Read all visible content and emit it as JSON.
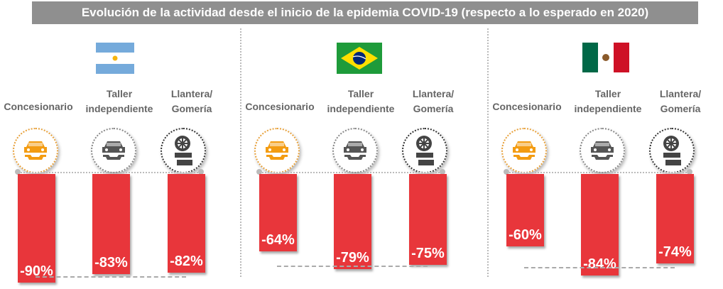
{
  "title": "Evolución de la actividad desde el inicio de la epidemia COVID-19 (respecto a lo esperado en 2020)",
  "colors": {
    "bar": "#e8363b",
    "title_bg": "#8f8f8f",
    "dealer_icon": "#f39c12",
    "icon": "#555555"
  },
  "chart_data": {
    "type": "bar",
    "title": "Evolución de la actividad desde el inicio de la epidemia COVID-19 (respecto a lo esperado en 2020)",
    "categories": [
      "Concesionario",
      "Taller independiente",
      "Llantera/ Gomería"
    ],
    "category_lines": [
      [
        "Concesionario"
      ],
      [
        "Taller",
        "independiente"
      ],
      [
        "Llantera/",
        "Gomería"
      ]
    ],
    "unit": "%",
    "series": [
      {
        "name": "Argentina",
        "flag": "argentina-flag",
        "values": [
          -90,
          -83,
          -82
        ],
        "labels": [
          "-90%",
          "-83%",
          "-82%"
        ]
      },
      {
        "name": "Brasil",
        "flag": "brazil-flag",
        "values": [
          -64,
          -79,
          -75
        ],
        "labels": [
          "-64%",
          "-79%",
          "-75%"
        ]
      },
      {
        "name": "México",
        "flag": "mexico-flag",
        "values": [
          -60,
          -84,
          -74
        ],
        "labels": [
          "-60%",
          "-84%",
          "-74%"
        ]
      }
    ],
    "icons": [
      "car-wrench-icon",
      "car-wrench-icon",
      "tire-stack-icon"
    ]
  }
}
